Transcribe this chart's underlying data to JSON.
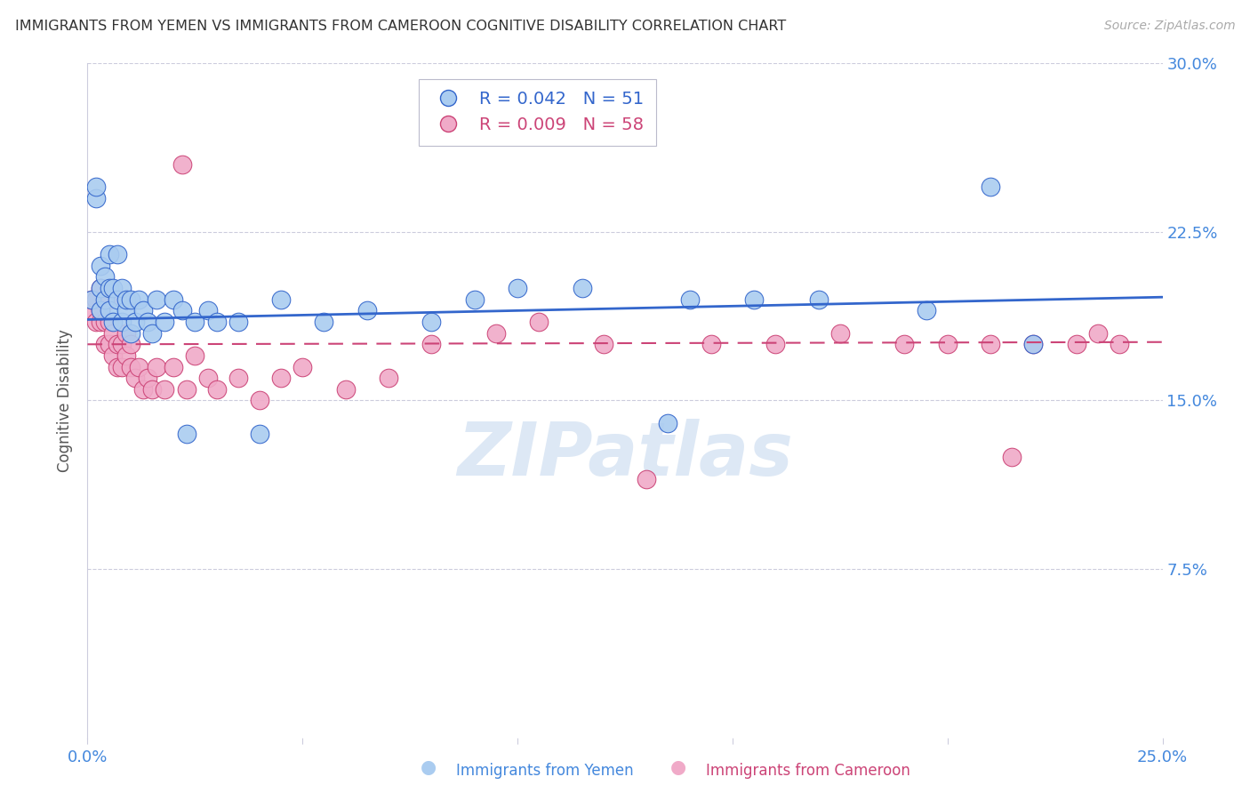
{
  "title": "IMMIGRANTS FROM YEMEN VS IMMIGRANTS FROM CAMEROON COGNITIVE DISABILITY CORRELATION CHART",
  "source": "Source: ZipAtlas.com",
  "ylabel": "Cognitive Disability",
  "watermark": "ZIPatlas",
  "xlim": [
    0.0,
    0.25
  ],
  "ylim": [
    0.0,
    0.3
  ],
  "legend_entries": [
    {
      "label": "Immigrants from Yemen",
      "R": "0.042",
      "N": "51",
      "color": "#aaccf0"
    },
    {
      "label": "Immigrants from Cameroon",
      "R": "0.009",
      "N": "58",
      "color": "#f0aac8"
    }
  ],
  "yemen_color": "#aaccf0",
  "cameroon_color": "#f0aac8",
  "yemen_line_color": "#3366cc",
  "cameroon_line_color": "#cc4477",
  "axis_tick_color": "#4488dd",
  "grid_color": "#ccccdd",
  "watermark_color": "#dde8f5",
  "yemen_x": [
    0.001,
    0.002,
    0.002,
    0.003,
    0.003,
    0.003,
    0.004,
    0.004,
    0.005,
    0.005,
    0.005,
    0.006,
    0.006,
    0.007,
    0.007,
    0.008,
    0.008,
    0.009,
    0.009,
    0.01,
    0.01,
    0.011,
    0.012,
    0.013,
    0.014,
    0.015,
    0.016,
    0.018,
    0.02,
    0.022,
    0.023,
    0.025,
    0.028,
    0.03,
    0.035,
    0.04,
    0.045,
    0.055,
    0.065,
    0.08,
    0.09,
    0.1,
    0.115,
    0.13,
    0.14,
    0.155,
    0.17,
    0.195,
    0.21,
    0.22,
    0.135
  ],
  "yemen_y": [
    0.195,
    0.24,
    0.245,
    0.19,
    0.2,
    0.21,
    0.195,
    0.205,
    0.19,
    0.2,
    0.215,
    0.185,
    0.2,
    0.195,
    0.215,
    0.185,
    0.2,
    0.19,
    0.195,
    0.18,
    0.195,
    0.185,
    0.195,
    0.19,
    0.185,
    0.18,
    0.195,
    0.185,
    0.195,
    0.19,
    0.135,
    0.185,
    0.19,
    0.185,
    0.185,
    0.135,
    0.195,
    0.185,
    0.19,
    0.185,
    0.195,
    0.2,
    0.2,
    0.27,
    0.195,
    0.195,
    0.195,
    0.19,
    0.245,
    0.175,
    0.14
  ],
  "cameroon_x": [
    0.001,
    0.001,
    0.002,
    0.002,
    0.003,
    0.003,
    0.003,
    0.004,
    0.004,
    0.004,
    0.005,
    0.005,
    0.005,
    0.006,
    0.006,
    0.007,
    0.007,
    0.008,
    0.008,
    0.009,
    0.009,
    0.01,
    0.01,
    0.011,
    0.012,
    0.013,
    0.014,
    0.015,
    0.016,
    0.018,
    0.02,
    0.022,
    0.023,
    0.025,
    0.028,
    0.03,
    0.035,
    0.04,
    0.045,
    0.05,
    0.06,
    0.07,
    0.08,
    0.095,
    0.105,
    0.12,
    0.13,
    0.145,
    0.16,
    0.175,
    0.19,
    0.2,
    0.21,
    0.215,
    0.22,
    0.23,
    0.235,
    0.24
  ],
  "cameroon_y": [
    0.19,
    0.195,
    0.185,
    0.195,
    0.185,
    0.19,
    0.2,
    0.175,
    0.185,
    0.195,
    0.175,
    0.185,
    0.195,
    0.17,
    0.18,
    0.165,
    0.175,
    0.165,
    0.175,
    0.17,
    0.18,
    0.165,
    0.175,
    0.16,
    0.165,
    0.155,
    0.16,
    0.155,
    0.165,
    0.155,
    0.165,
    0.255,
    0.155,
    0.17,
    0.16,
    0.155,
    0.16,
    0.15,
    0.16,
    0.165,
    0.155,
    0.16,
    0.175,
    0.18,
    0.185,
    0.175,
    0.115,
    0.175,
    0.175,
    0.18,
    0.175,
    0.175,
    0.175,
    0.125,
    0.175,
    0.175,
    0.18,
    0.175
  ],
  "yemen_trend_x": [
    0.0,
    0.25
  ],
  "yemen_trend_y": [
    0.186,
    0.196
  ],
  "cameroon_trend_x": [
    0.0,
    0.25
  ],
  "cameroon_trend_y": [
    0.175,
    0.176
  ]
}
